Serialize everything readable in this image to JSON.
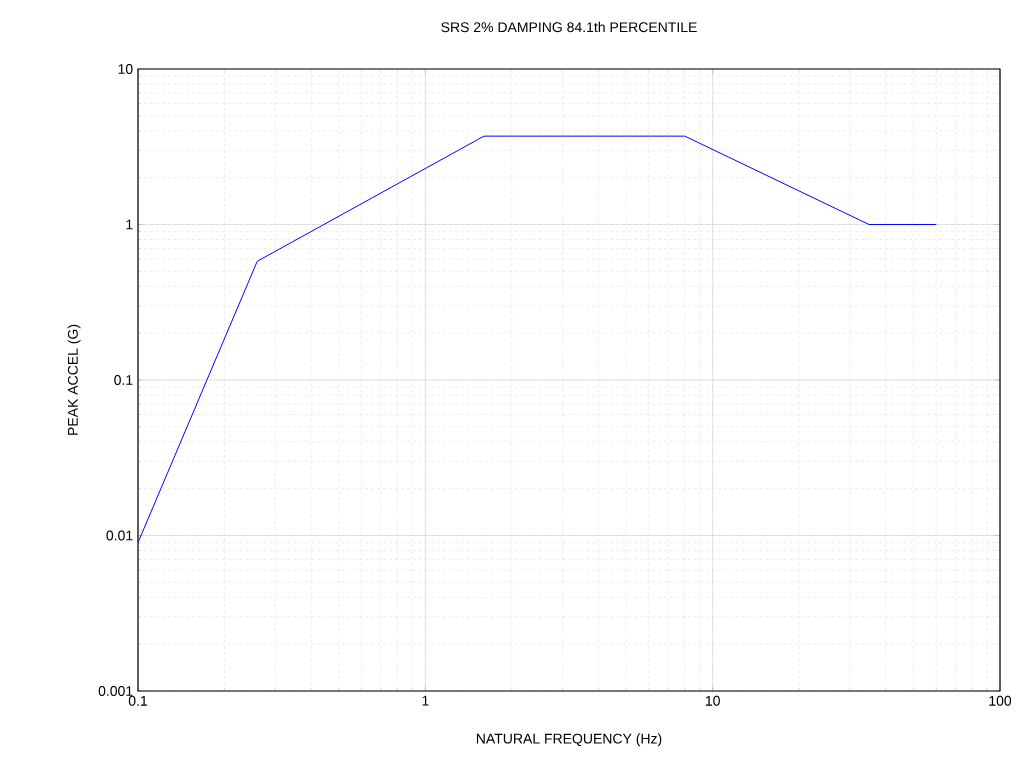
{
  "chart_data": {
    "type": "line",
    "title": "SRS  2% DAMPING  84.1th PERCENTILE",
    "xlabel": "NATURAL FREQUENCY (Hz)",
    "ylabel": "PEAK ACCEL (G)",
    "x": [
      0.1,
      0.26,
      1.6,
      8,
      35,
      60
    ],
    "series": [
      {
        "color": "#0000ff",
        "values": [
          0.009,
          0.58,
          3.7,
          3.7,
          1,
          1
        ]
      }
    ],
    "log": "xy",
    "grid": true,
    "marker": "none",
    "line_style": "solid",
    "xlim": [
      0.1,
      100
    ],
    "ylim": [
      0.001,
      10
    ],
    "xticks": [
      0.1,
      1,
      10,
      100
    ],
    "yticks": [
      0.001,
      0.01,
      0.1,
      1,
      10
    ]
  }
}
